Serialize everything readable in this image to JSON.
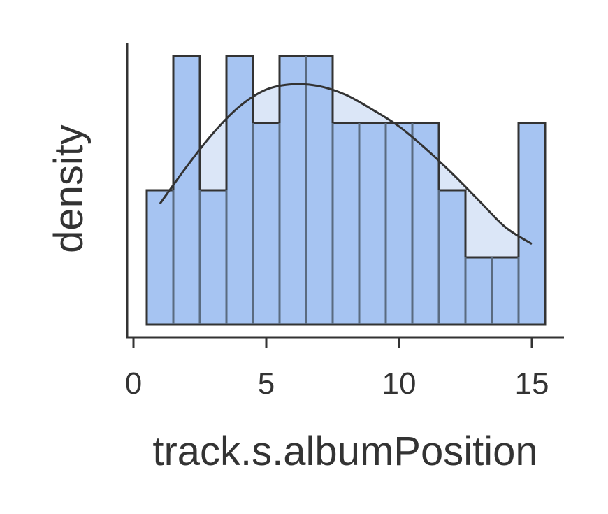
{
  "chart_data": {
    "type": "histogram",
    "title": "",
    "xlabel": "track.s.albumPosition",
    "ylabel": "density",
    "xlim": [
      -0.3,
      16.1
    ],
    "x_ticks": [
      0,
      5,
      10,
      15
    ],
    "y_ticks_shown": false,
    "bin_edges": [
      0.5,
      1.5,
      2.5,
      3.5,
      4.5,
      5.5,
      6.5,
      7.5,
      8.5,
      9.5,
      10.5,
      11.5,
      12.5,
      13.5,
      14.5,
      15.5
    ],
    "counts": [
      2,
      4,
      2,
      4,
      3,
      4,
      4,
      3,
      3,
      3,
      3,
      2,
      1,
      1,
      3
    ],
    "kde": {
      "x": [
        1,
        2,
        3,
        4,
        5,
        6,
        7,
        8,
        9,
        10,
        11,
        12,
        13,
        14,
        15
      ],
      "density_relative_to_count": [
        1.8,
        2.35,
        2.85,
        3.25,
        3.5,
        3.58,
        3.55,
        3.42,
        3.2,
        2.95,
        2.62,
        2.25,
        1.85,
        1.45,
        1.2
      ]
    },
    "colors": {
      "bar": "#a6c4f2",
      "bar_overlap": "#dbe6f7",
      "edge": "#333333",
      "edge_inner": "#5a6b80"
    },
    "grid": false,
    "legend": "none"
  }
}
